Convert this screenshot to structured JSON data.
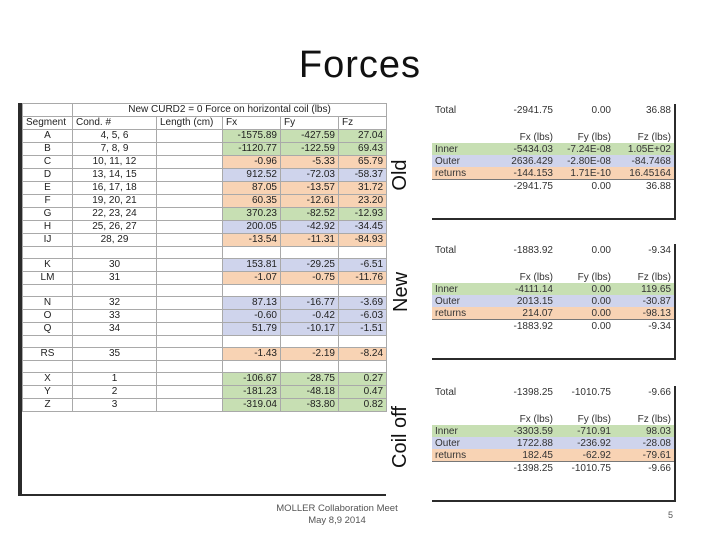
{
  "title": "Forces",
  "main_table": {
    "caption": "New CURD2 = 0 Force on horizontal coil (lbs)",
    "headers": [
      "Segment",
      "Cond. #",
      "Length (cm)",
      "Fx",
      "Fy",
      "Fz"
    ],
    "rows": [
      {
        "seg": "A",
        "cond": "4, 5, 6",
        "fx": "-1575.89",
        "fy": "-427.59",
        "fz": "27.04",
        "color": "g"
      },
      {
        "seg": "B",
        "cond": "7, 8, 9",
        "fx": "-1120.77",
        "fy": "-122.59",
        "fz": "69.43",
        "color": "g"
      },
      {
        "seg": "C",
        "cond": "10, 11, 12",
        "fx": "-0.96",
        "fy": "-5.33",
        "fz": "65.79",
        "color": "o"
      },
      {
        "seg": "D",
        "cond": "13, 14, 15",
        "fx": "912.52",
        "fy": "-72.03",
        "fz": "-58.37",
        "color": "b"
      },
      {
        "seg": "E",
        "cond": "16, 17, 18",
        "fx": "87.05",
        "fy": "-13.57",
        "fz": "31.72",
        "color": "o"
      },
      {
        "seg": "F",
        "cond": "19, 20, 21",
        "fx": "60.35",
        "fy": "-12.61",
        "fz": "23.20",
        "color": "o"
      },
      {
        "seg": "G",
        "cond": "22, 23, 24",
        "fx": "370.23",
        "fy": "-82.52",
        "fz": "-12.93",
        "color": "g"
      },
      {
        "seg": "H",
        "cond": "25, 26, 27",
        "fx": "200.05",
        "fy": "-42.92",
        "fz": "-34.45",
        "color": "b"
      },
      {
        "seg": "IJ",
        "cond": "28, 29",
        "fx": "-13.54",
        "fy": "-11.31",
        "fz": "-84.93",
        "color": "o"
      },
      {
        "blank": true
      },
      {
        "seg": "K",
        "cond": "30",
        "fx": "153.81",
        "fy": "-29.25",
        "fz": "-6.51",
        "color": "b"
      },
      {
        "seg": "LM",
        "cond": "31",
        "fx": "-1.07",
        "fy": "-0.75",
        "fz": "-11.76",
        "color": "o"
      },
      {
        "blank": true
      },
      {
        "seg": "N",
        "cond": "32",
        "fx": "87.13",
        "fy": "-16.77",
        "fz": "-3.69",
        "color": "b"
      },
      {
        "seg": "O",
        "cond": "33",
        "fx": "-0.60",
        "fy": "-0.42",
        "fz": "-6.03",
        "color": "b"
      },
      {
        "seg": "Q",
        "cond": "34",
        "fx": "51.79",
        "fy": "-10.17",
        "fz": "-1.51",
        "color": "b"
      },
      {
        "blank": true
      },
      {
        "seg": "RS",
        "cond": "35",
        "fx": "-1.43",
        "fy": "-2.19",
        "fz": "-8.24",
        "color": "o"
      },
      {
        "blank": true
      },
      {
        "seg": "X",
        "cond": "1",
        "fx": "-106.67",
        "fy": "-28.75",
        "fz": "0.27",
        "color": "g"
      },
      {
        "seg": "Y",
        "cond": "2",
        "fx": "-181.23",
        "fy": "-48.18",
        "fz": "0.47",
        "color": "g"
      },
      {
        "seg": "Z",
        "cond": "3",
        "fx": "-319.04",
        "fy": "-83.80",
        "fz": "0.82",
        "color": "g"
      }
    ]
  },
  "labels": {
    "old": "Old",
    "new": "New",
    "coil_off": "Coil off"
  },
  "summaries": {
    "old": {
      "total_label": "Total",
      "total": [
        "-2941.75",
        "0.00",
        "36.88"
      ],
      "col_heads": [
        "Fx (lbs)",
        "Fy (lbs)",
        "Fz (lbs)"
      ],
      "rows": [
        {
          "label": "Inner",
          "v": [
            "-5434.03",
            "-7.24E-08",
            "1.05E+02"
          ],
          "color": "g"
        },
        {
          "label": "Outer",
          "v": [
            "2636.429",
            "-2.80E-08",
            "-84.7468"
          ],
          "color": "b"
        },
        {
          "label": "returns",
          "v": [
            "-144.153",
            "1.71E-10",
            "16.45164"
          ],
          "color": "o"
        }
      ],
      "bottom": [
        "-2941.75",
        "0.00",
        "36.88"
      ]
    },
    "new": {
      "total_label": "Total",
      "total": [
        "-1883.92",
        "0.00",
        "-9.34"
      ],
      "col_heads": [
        "Fx (lbs)",
        "Fy (lbs)",
        "Fz (lbs)"
      ],
      "rows": [
        {
          "label": "Inner",
          "v": [
            "-4111.14",
            "0.00",
            "119.65"
          ],
          "color": "g"
        },
        {
          "label": "Outer",
          "v": [
            "2013.15",
            "0.00",
            "-30.87"
          ],
          "color": "b"
        },
        {
          "label": "returns",
          "v": [
            "214.07",
            "0.00",
            "-98.13"
          ],
          "color": "o"
        }
      ],
      "bottom": [
        "-1883.92",
        "0.00",
        "-9.34"
      ]
    },
    "coil_off": {
      "total_label": "Total",
      "total": [
        "-1398.25",
        "-1010.75",
        "-9.66"
      ],
      "col_heads": [
        "Fx (lbs)",
        "Fy (lbs)",
        "Fz (lbs)"
      ],
      "rows": [
        {
          "label": "Inner",
          "v": [
            "-3303.59",
            "-710.91",
            "98.03"
          ],
          "color": "g"
        },
        {
          "label": "Outer",
          "v": [
            "1722.88",
            "-236.92",
            "-28.08"
          ],
          "color": "b"
        },
        {
          "label": "returns",
          "v": [
            "182.45",
            "-62.92",
            "-79.61"
          ],
          "color": "o"
        }
      ],
      "bottom": [
        "-1398.25",
        "-1010.75",
        "-9.66"
      ]
    }
  },
  "footer": {
    "line1": "MOLLER Collaboration Meet",
    "line2": "May 8,9 2014"
  },
  "page_number": "5"
}
